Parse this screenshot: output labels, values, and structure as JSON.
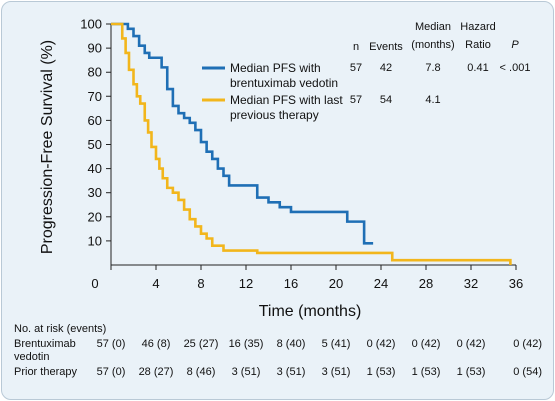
{
  "chart_data": {
    "type": "line",
    "step": true,
    "ylabel": "Progression-Free Survival (%)",
    "xlabel": "Time (months)",
    "xlim": [
      0,
      36
    ],
    "ylim": [
      0,
      100
    ],
    "xticks": [
      0,
      4,
      8,
      12,
      16,
      20,
      24,
      28,
      32,
      36
    ],
    "yticks": [
      10,
      20,
      30,
      40,
      50,
      60,
      70,
      80,
      90,
      100
    ],
    "table_headers": {
      "n": "n",
      "events": "Events",
      "median": [
        "Median",
        "(months)"
      ],
      "hazard": [
        "Hazard",
        "Ratio"
      ],
      "p": "P"
    },
    "series": [
      {
        "name_lines": [
          "Median PFS with",
          "brentuximab vedotin"
        ],
        "color": "#1f6fb5",
        "n": "57",
        "events": "42",
        "median": "7.8",
        "hazard_ratio": "0.41",
        "p": "< .001",
        "x": [
          0,
          1,
          1.5,
          2,
          2.5,
          3,
          3.4,
          4,
          4.5,
          5,
          5.5,
          6,
          6.5,
          7,
          7.5,
          8,
          8.5,
          9,
          9.5,
          10,
          10.5,
          12,
          13,
          14,
          15,
          16,
          17,
          19.5,
          21,
          22,
          22.5,
          23.3
        ],
        "y": [
          100,
          100,
          98,
          95,
          91,
          88,
          86,
          86,
          82,
          73,
          66,
          63,
          61,
          59,
          56,
          51,
          47,
          44,
          40,
          37,
          33,
          33,
          28,
          26,
          24,
          22,
          22,
          22,
          18,
          18,
          9,
          9
        ]
      },
      {
        "name_lines": [
          "Median PFS with last",
          "previous therapy"
        ],
        "color": "#f2b61c",
        "n": "57",
        "events": "54",
        "median": "4.1",
        "hazard_ratio": "",
        "p": "",
        "x": [
          0,
          0.7,
          1,
          1.3,
          1.6,
          2,
          2.3,
          2.6,
          3,
          3.3,
          3.6,
          4,
          4.3,
          4.6,
          5,
          5.5,
          6,
          6.5,
          7,
          7.5,
          8,
          8.5,
          9,
          9.5,
          10,
          11,
          12,
          13,
          15,
          25,
          35.5
        ],
        "y": [
          100,
          100,
          94,
          88,
          81,
          75,
          70,
          67,
          60,
          55,
          49,
          44,
          40,
          36,
          32,
          30,
          27,
          23,
          19,
          16,
          13,
          11,
          8,
          8,
          6,
          6,
          6,
          5,
          5,
          2,
          0
        ]
      }
    ]
  },
  "risk_table": {
    "title": "No. at risk (events)",
    "rows": [
      {
        "label_lines": [
          "Brentuximab",
          "vedotin"
        ],
        "values": [
          "57 (0)",
          "46 (8)",
          "25 (27)",
          "16 (35)",
          "8 (40)",
          "5 (41)",
          "0 (42)",
          "0 (42)",
          "0 (42)",
          "0 (42)"
        ]
      },
      {
        "label_lines": [
          "Prior therapy"
        ],
        "values": [
          "57 (0)",
          "28 (27)",
          "8 (46)",
          "3 (51)",
          "3 (51)",
          "3 (51)",
          "1 (53)",
          "1 (53)",
          "1 (53)",
          "0 (54)"
        ]
      }
    ]
  }
}
